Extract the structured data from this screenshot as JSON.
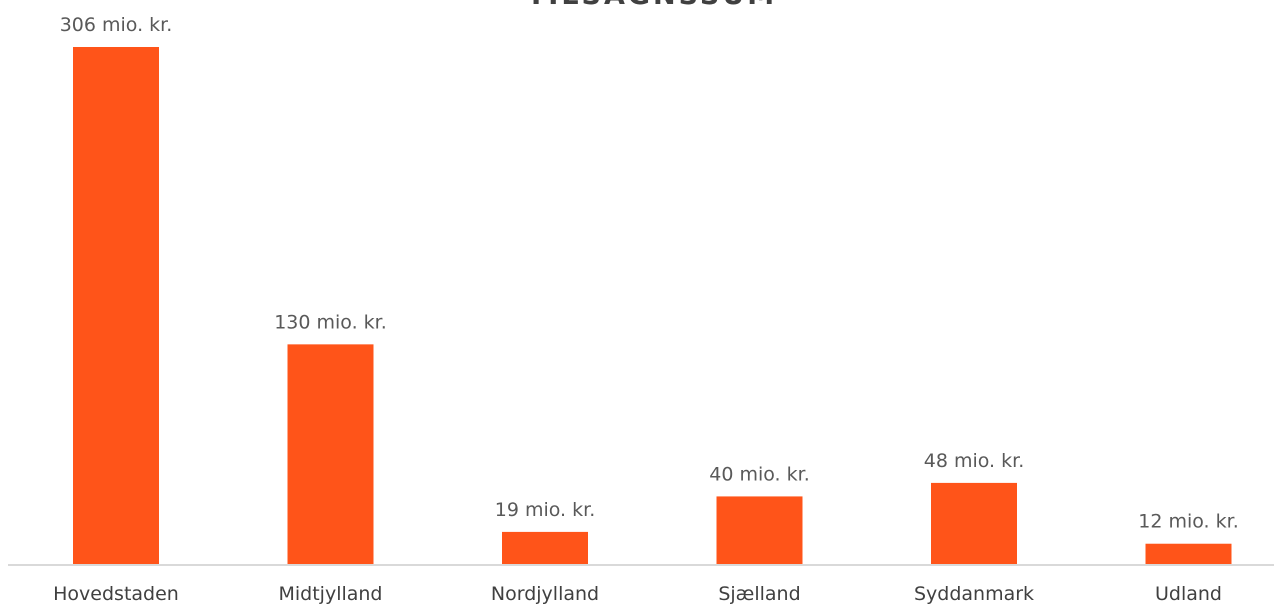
{
  "chart_data": {
    "type": "bar",
    "title": "TILSAGNSSUM",
    "categories": [
      "Hovedstaden",
      "Midtjylland",
      "Nordjylland",
      "Sjælland",
      "Syddanmark",
      "Udland"
    ],
    "values": [
      306,
      130,
      19,
      40,
      48,
      12
    ],
    "data_labels": [
      "306 mio. kr.",
      "130 mio. kr.",
      "19 mio. kr.",
      "40 mio. kr.",
      "48 mio. kr.",
      "12 mio. kr."
    ],
    "xlabel": "",
    "ylabel": "",
    "ylim": [
      0,
      306
    ],
    "grid": false,
    "legend": "none",
    "colors": {
      "bar": "#FF5419",
      "data_label": "#595959",
      "category_label": "#404040",
      "title": "#404040",
      "axis_line": "#D9D9D9"
    }
  }
}
